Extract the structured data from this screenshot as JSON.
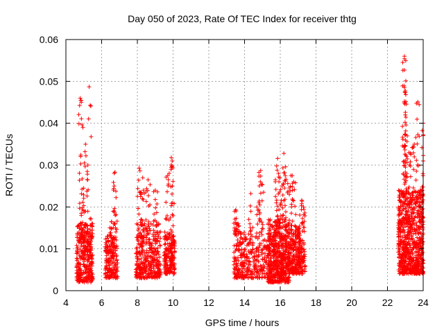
{
  "chart_data": {
    "type": "scatter",
    "title": "Day 050 of 2023, Rate Of TEC Index for receiver thtg",
    "xlabel": "GPS time / hours",
    "ylabel": "ROTI / TECUs",
    "xlim": [
      4,
      24
    ],
    "ylim": [
      0,
      0.06
    ],
    "xticks": [
      4,
      6,
      8,
      10,
      12,
      14,
      16,
      18,
      20,
      22,
      24
    ],
    "xtick_labels": [
      "4",
      "6",
      "8",
      "10",
      "12",
      "14",
      "16",
      "18",
      "20",
      "22",
      "24"
    ],
    "yticks": [
      0,
      0.01,
      0.02,
      0.03,
      0.04,
      0.05,
      0.06
    ],
    "ytick_labels": [
      "0",
      "0.01",
      "0.02",
      "0.03",
      "0.04",
      "0.05",
      "0.06"
    ],
    "grid": true,
    "marker": "+",
    "marker_color": "#ff0000",
    "series": [
      {
        "name": "ROTI",
        "clusters": [
          {
            "x_range": [
              4.6,
              5.5
            ],
            "base_range": [
              0.002,
              0.016
            ],
            "peaks": [
              [
                4.8,
                0.046
              ],
              [
                4.85,
                0.0455
              ],
              [
                5.3,
                0.0487
              ],
              [
                4.95,
                0.039
              ],
              [
                5.1,
                0.035
              ]
            ],
            "density": 340
          },
          {
            "x_range": [
              6.2,
              6.9
            ],
            "base_range": [
              0.003,
              0.013
            ],
            "peaks": [
              [
                6.75,
                0.0283
              ],
              [
                6.7,
                0.025
              ],
              [
                6.55,
                0.0165
              ]
            ],
            "density": 180
          },
          {
            "x_range": [
              7.9,
              9.3
            ],
            "base_range": [
              0.003,
              0.016
            ],
            "peaks": [
              [
                8.1,
                0.0293
              ],
              [
                8.3,
                0.027
              ],
              [
                9.0,
                0.024
              ],
              [
                8.6,
                0.0265
              ]
            ],
            "density": 360
          },
          {
            "x_range": [
              9.5,
              10.1
            ],
            "base_range": [
              0.004,
              0.014
            ],
            "peaks": [
              [
                9.9,
                0.0318
              ],
              [
                9.95,
                0.031
              ],
              [
                9.7,
                0.0275
              ]
            ],
            "density": 180
          },
          {
            "x_range": [
              13.4,
              14.1
            ],
            "base_range": [
              0.003,
              0.014
            ],
            "peaks": [
              [
                13.5,
                0.0193
              ],
              [
                13.6,
                0.016
              ]
            ],
            "density": 140
          },
          {
            "x_range": [
              14.1,
              15.5
            ],
            "base_range": [
              0.003,
              0.013
            ],
            "peaks": [
              [
                14.35,
                0.0232
              ],
              [
                14.9,
                0.0287
              ],
              [
                14.95,
                0.0254
              ],
              [
                14.8,
                0.021
              ]
            ],
            "density": 190
          },
          {
            "x_range": [
              15.3,
              16.5
            ],
            "base_range": [
              0.002,
              0.017
            ],
            "peaks": [
              [
                15.85,
                0.0316
              ],
              [
                16.2,
                0.0328
              ],
              [
                16.3,
                0.0296
              ],
              [
                15.9,
                0.028
              ],
              [
                16.1,
                0.025
              ]
            ],
            "density": 520
          },
          {
            "x_range": [
              16.5,
              17.1
            ],
            "base_range": [
              0.004,
              0.016
            ],
            "peaks": [
              [
                16.6,
                0.0275
              ],
              [
                16.75,
                0.026
              ]
            ],
            "density": 200
          },
          {
            "x_range": [
              17.0,
              17.4
            ],
            "base_range": [
              0.004,
              0.013
            ],
            "peaks": [
              [
                17.2,
                0.0216
              ],
              [
                17.3,
                0.02
              ]
            ],
            "density": 80
          },
          {
            "x_range": [
              22.6,
              24.0
            ],
            "base_range": [
              0.004,
              0.024
            ],
            "peaks": [
              [
                22.95,
                0.056
              ],
              [
                22.95,
                0.0554
              ],
              [
                22.95,
                0.0527
              ],
              [
                23.0,
                0.0473
              ],
              [
                22.95,
                0.0452
              ],
              [
                23.7,
                0.0451
              ],
              [
                23.0,
                0.042
              ],
              [
                24.0,
                0.04
              ],
              [
                23.5,
                0.035
              ],
              [
                23.2,
                0.033
              ]
            ],
            "density": 760
          }
        ]
      }
    ]
  }
}
